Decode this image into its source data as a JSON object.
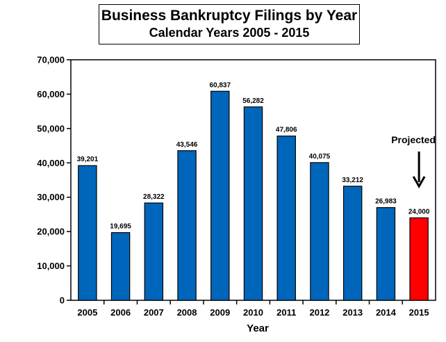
{
  "chart_data": {
    "type": "bar",
    "title": "Business Bankruptcy Filings by Year",
    "subtitle": "Calendar Years 2005 - 2015",
    "xlabel": "Year",
    "ylabel": "",
    "categories": [
      "2005",
      "2006",
      "2007",
      "2008",
      "2009",
      "2010",
      "2011",
      "2012",
      "2013",
      "2014",
      "2015"
    ],
    "values": [
      39201,
      19695,
      28322,
      43546,
      60837,
      56282,
      47806,
      40075,
      33212,
      26983,
      24000
    ],
    "data_labels": [
      "39,201",
      "19,695",
      "28,322",
      "43,546",
      "60,837",
      "56,282",
      "47,806",
      "40,075",
      "33,212",
      "26,983",
      "24,000"
    ],
    "yticks": [
      "0",
      "10,000",
      "20,000",
      "30,000",
      "40,000",
      "50,000",
      "60,000",
      "70,000"
    ],
    "ylim": [
      0,
      70000
    ],
    "grid": false,
    "legend": "none",
    "colors": {
      "bar": "#0066bb",
      "highlight": "#ff0000"
    },
    "highlight_index": 10,
    "annotation": {
      "text": "Projected",
      "target_category": "2015",
      "arrow": "down"
    }
  }
}
